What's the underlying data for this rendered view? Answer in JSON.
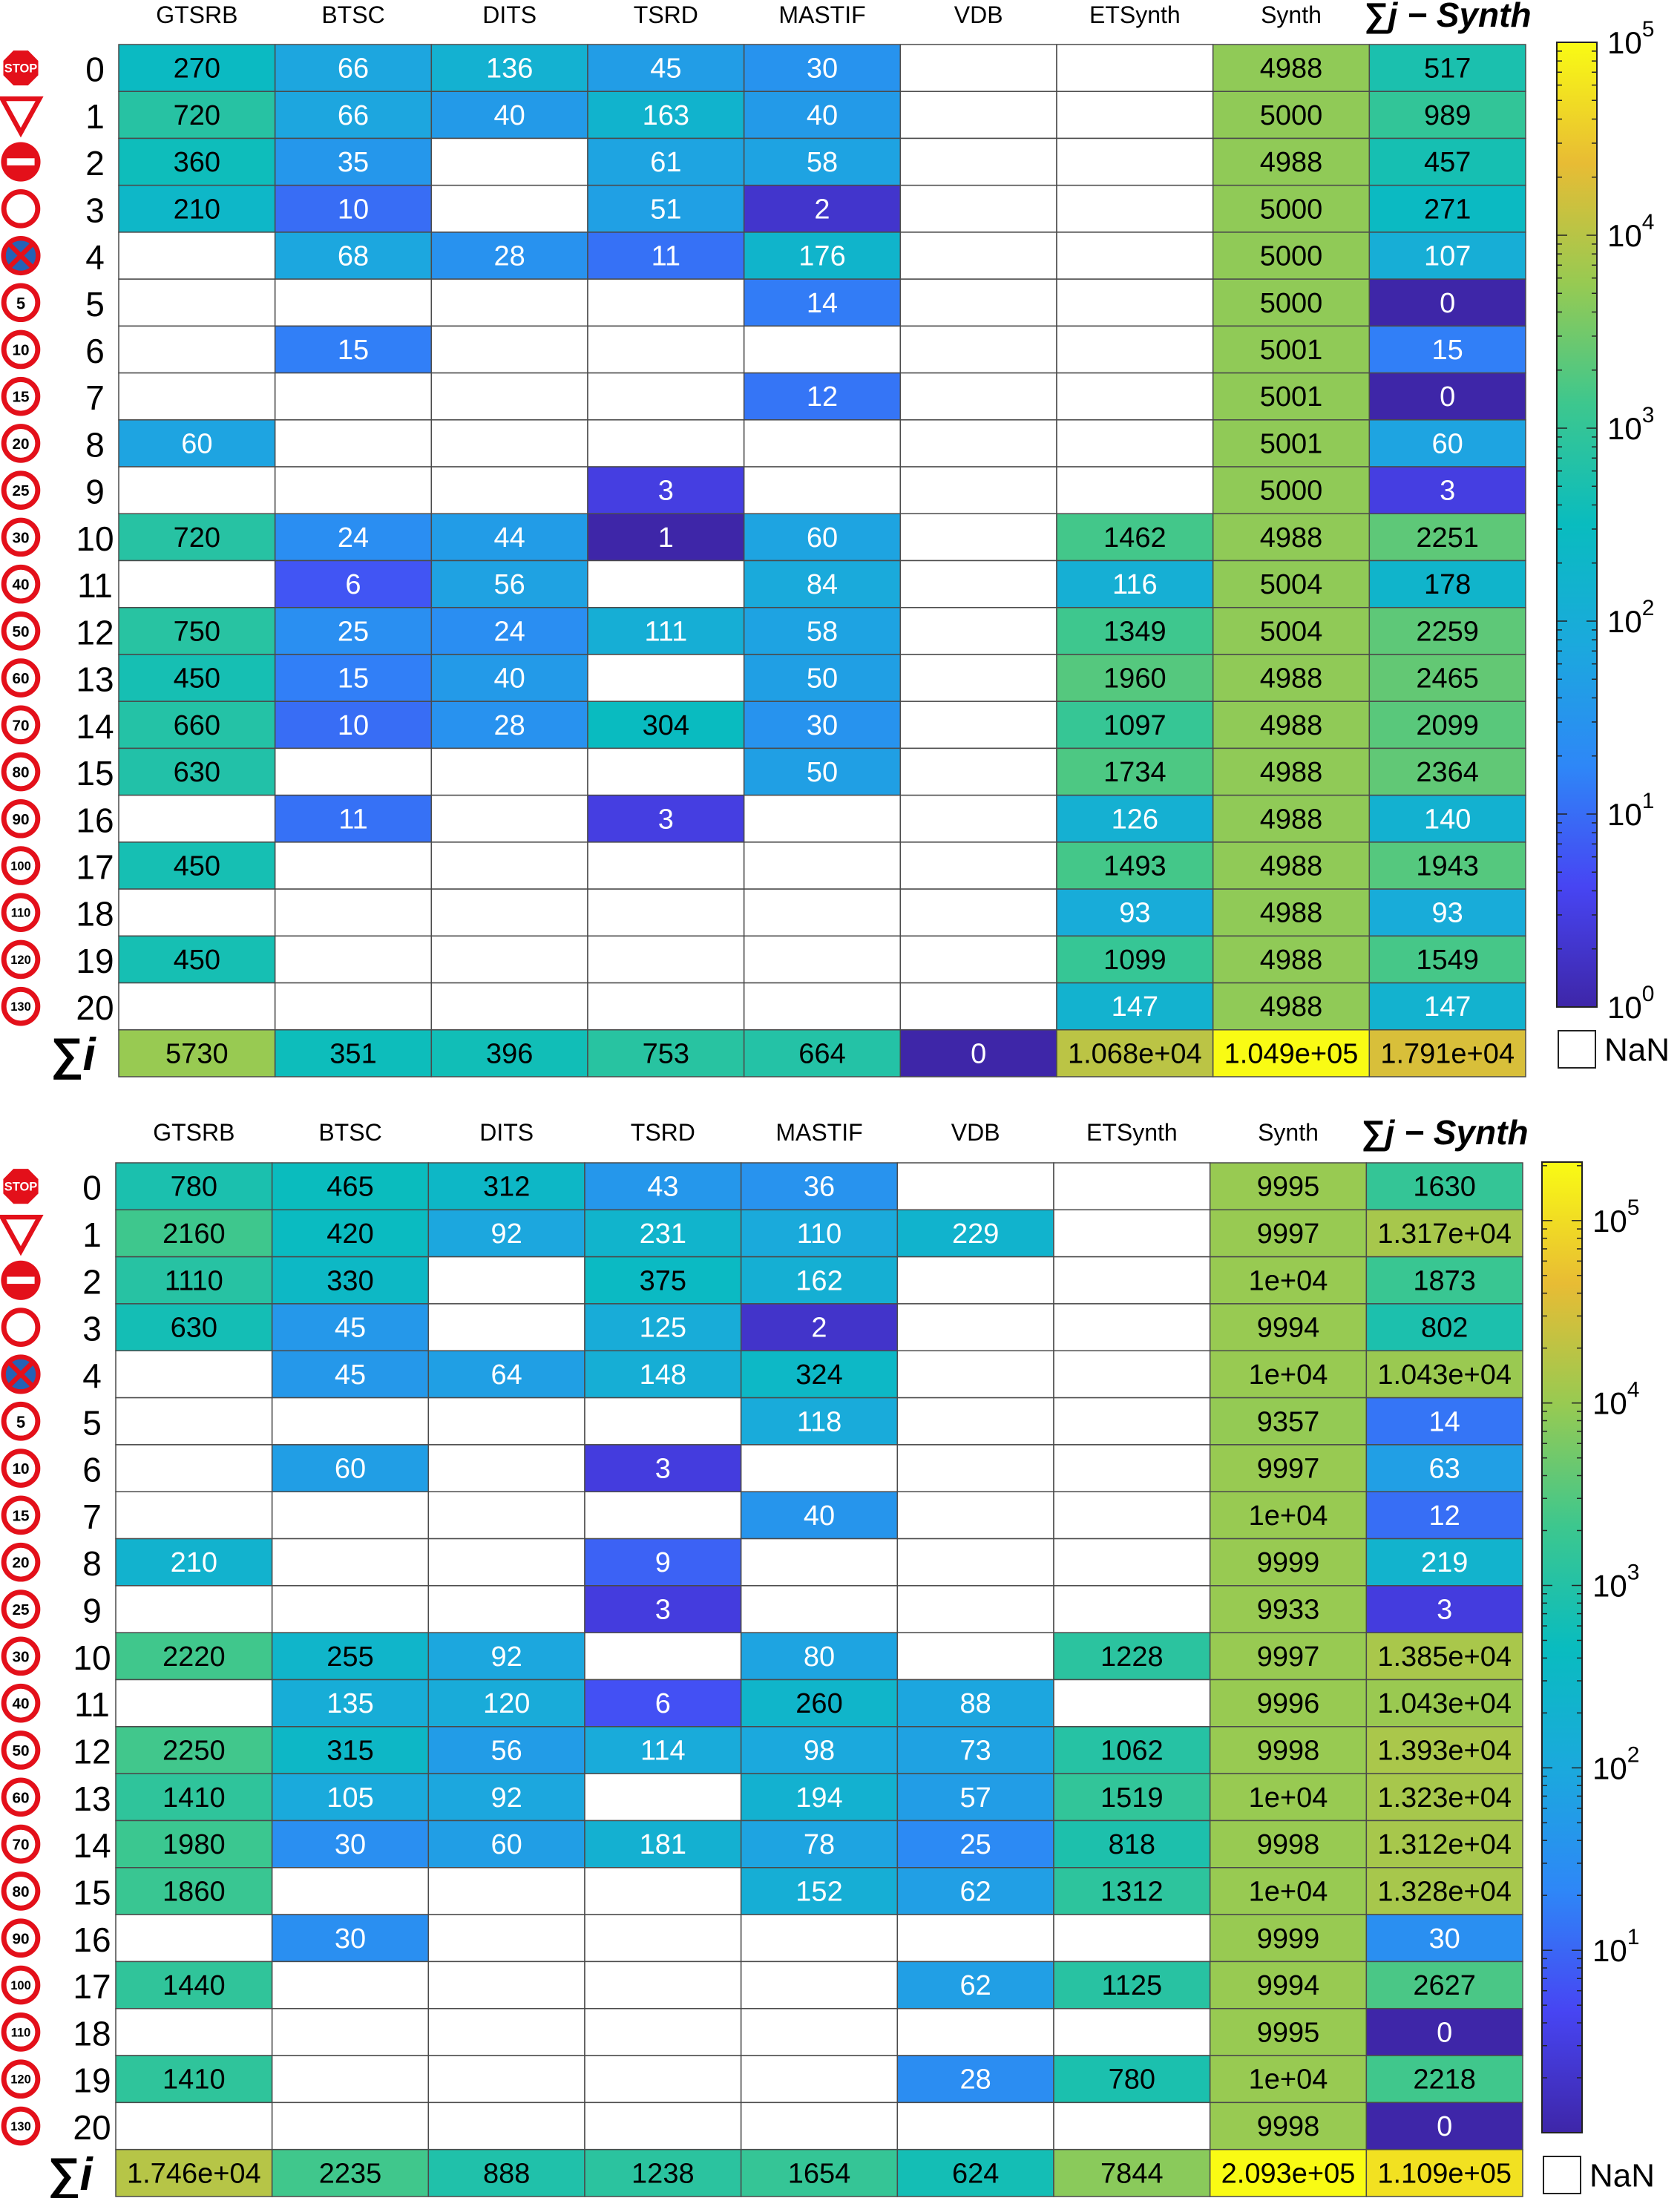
{
  "chart_data": [
    {
      "type": "heatmap",
      "columns": [
        "GTSRB",
        "BTSC",
        "DITS",
        "TSRD",
        "MASTIF",
        "VDB",
        "ETSynth",
        "Synth",
        "∑j − Synth"
      ],
      "rows": [
        "0",
        "1",
        "2",
        "3",
        "4",
        "5",
        "6",
        "7",
        "8",
        "9",
        "10",
        "11",
        "12",
        "13",
        "14",
        "15",
        "16",
        "17",
        "18",
        "19",
        "20",
        "∑i"
      ],
      "row_icons": [
        "STOP",
        "yield",
        "no-entry",
        "circle",
        "no-stopping",
        "5",
        "10",
        "15",
        "20",
        "25",
        "30",
        "40",
        "50",
        "60",
        "70",
        "80",
        "90",
        "100",
        "110",
        "120",
        "130"
      ],
      "color_scale": "log",
      "clim": [
        1,
        100000
      ],
      "colorbar_ticks": [
        "10^0",
        "10^1",
        "10^2",
        "10^3",
        "10^4",
        "10^5"
      ],
      "nan_label": "NaN",
      "values": [
        [
          270,
          66,
          136,
          45,
          30,
          null,
          null,
          4988,
          517
        ],
        [
          720,
          66,
          40,
          163,
          40,
          null,
          null,
          5000,
          989
        ],
        [
          360,
          35,
          null,
          61,
          58,
          null,
          null,
          4988,
          457
        ],
        [
          210,
          10,
          null,
          51,
          2,
          null,
          null,
          5000,
          271
        ],
        [
          null,
          68,
          28,
          11,
          176,
          null,
          null,
          5000,
          107
        ],
        [
          null,
          null,
          null,
          null,
          14,
          null,
          null,
          5000,
          0
        ],
        [
          null,
          15,
          null,
          null,
          null,
          null,
          null,
          5001,
          15
        ],
        [
          null,
          null,
          null,
          null,
          12,
          null,
          null,
          5001,
          0
        ],
        [
          60,
          null,
          null,
          null,
          null,
          null,
          null,
          5001,
          60
        ],
        [
          null,
          null,
          null,
          3,
          null,
          null,
          null,
          5000,
          3
        ],
        [
          720,
          24,
          44,
          1,
          60,
          null,
          1462,
          4988,
          2251
        ],
        [
          null,
          6,
          56,
          null,
          84,
          null,
          116,
          5004,
          178
        ],
        [
          750,
          25,
          24,
          111,
          58,
          null,
          1349,
          5004,
          2259
        ],
        [
          450,
          15,
          40,
          null,
          50,
          null,
          1960,
          4988,
          2465
        ],
        [
          660,
          10,
          28,
          304,
          30,
          null,
          1097,
          4988,
          2099
        ],
        [
          630,
          null,
          null,
          null,
          50,
          null,
          1734,
          4988,
          2364
        ],
        [
          null,
          11,
          null,
          3,
          null,
          null,
          126,
          4988,
          140
        ],
        [
          450,
          null,
          null,
          null,
          null,
          null,
          1493,
          4988,
          1943
        ],
        [
          null,
          null,
          null,
          null,
          null,
          null,
          93,
          4988,
          93
        ],
        [
          450,
          null,
          null,
          null,
          null,
          null,
          1099,
          4988,
          1549
        ],
        [
          null,
          null,
          null,
          null,
          null,
          null,
          147,
          4988,
          147
        ],
        [
          5730,
          351,
          396,
          753,
          664,
          0,
          10680,
          104900,
          17910
        ]
      ],
      "labels": [
        [
          "270",
          "66",
          "136",
          "45",
          "30",
          "",
          "",
          "4988",
          "517"
        ],
        [
          "720",
          "66",
          "40",
          "163",
          "40",
          "",
          "",
          "5000",
          "989"
        ],
        [
          "360",
          "35",
          "",
          "61",
          "58",
          "",
          "",
          "4988",
          "457"
        ],
        [
          "210",
          "10",
          "",
          "51",
          "2",
          "",
          "",
          "5000",
          "271"
        ],
        [
          "",
          "68",
          "28",
          "11",
          "176",
          "",
          "",
          "5000",
          "107"
        ],
        [
          "",
          "",
          "",
          "",
          "14",
          "",
          "",
          "5000",
          "0"
        ],
        [
          "",
          "15",
          "",
          "",
          "",
          "",
          "",
          "5001",
          "15"
        ],
        [
          "",
          "",
          "",
          "",
          "12",
          "",
          "",
          "5001",
          "0"
        ],
        [
          "60",
          "",
          "",
          "",
          "",
          "",
          "",
          "5001",
          "60"
        ],
        [
          "",
          "",
          "",
          "3",
          "",
          "",
          "",
          "5000",
          "3"
        ],
        [
          "720",
          "24",
          "44",
          "1",
          "60",
          "",
          "1462",
          "4988",
          "2251"
        ],
        [
          "",
          "6",
          "56",
          "",
          "84",
          "",
          "116",
          "5004",
          "178"
        ],
        [
          "750",
          "25",
          "24",
          "111",
          "58",
          "",
          "1349",
          "5004",
          "2259"
        ],
        [
          "450",
          "15",
          "40",
          "",
          "50",
          "",
          "1960",
          "4988",
          "2465"
        ],
        [
          "660",
          "10",
          "28",
          "304",
          "30",
          "",
          "1097",
          "4988",
          "2099"
        ],
        [
          "630",
          "",
          "",
          "",
          "50",
          "",
          "1734",
          "4988",
          "2364"
        ],
        [
          "",
          "11",
          "",
          "3",
          "",
          "",
          "126",
          "4988",
          "140"
        ],
        [
          "450",
          "",
          "",
          "",
          "",
          "",
          "1493",
          "4988",
          "1943"
        ],
        [
          "",
          "",
          "",
          "",
          "",
          "",
          "93",
          "4988",
          "93"
        ],
        [
          "450",
          "",
          "",
          "",
          "",
          "",
          "1099",
          "4988",
          "1549"
        ],
        [
          "",
          "",
          "",
          "",
          "",
          "",
          "147",
          "4988",
          "147"
        ],
        [
          "5730",
          "351",
          "396",
          "753",
          "664",
          "0",
          "1.068e+04",
          "1.049e+05",
          "1.791e+04"
        ]
      ]
    },
    {
      "type": "heatmap",
      "columns": [
        "GTSRB",
        "BTSC",
        "DITS",
        "TSRD",
        "MASTIF",
        "VDB",
        "ETSynth",
        "Synth",
        "∑j − Synth"
      ],
      "rows": [
        "0",
        "1",
        "2",
        "3",
        "4",
        "5",
        "6",
        "7",
        "8",
        "9",
        "10",
        "11",
        "12",
        "13",
        "14",
        "15",
        "16",
        "17",
        "18",
        "19",
        "20",
        "∑i"
      ],
      "row_icons": [
        "STOP",
        "yield",
        "no-entry",
        "circle",
        "no-stopping",
        "5",
        "10",
        "15",
        "20",
        "25",
        "30",
        "40",
        "50",
        "60",
        "70",
        "80",
        "90",
        "100",
        "110",
        "120",
        "130"
      ],
      "color_scale": "log",
      "clim": [
        1,
        209300
      ],
      "colorbar_ticks": [
        "10^1",
        "10^2",
        "10^3",
        "10^4",
        "10^5"
      ],
      "nan_label": "NaN",
      "values": [
        [
          780,
          465,
          312,
          43,
          36,
          null,
          null,
          9995,
          1630
        ],
        [
          2160,
          420,
          92,
          231,
          110,
          229,
          null,
          9997,
          13170
        ],
        [
          1110,
          330,
          null,
          375,
          162,
          null,
          null,
          10000,
          1873
        ],
        [
          630,
          45,
          null,
          125,
          2,
          null,
          null,
          9994,
          802
        ],
        [
          null,
          45,
          64,
          148,
          324,
          null,
          null,
          10000,
          10430
        ],
        [
          null,
          null,
          null,
          null,
          118,
          null,
          null,
          9357,
          14
        ],
        [
          null,
          60,
          null,
          3,
          null,
          null,
          null,
          9997,
          63
        ],
        [
          null,
          null,
          null,
          null,
          40,
          null,
          null,
          10000,
          12
        ],
        [
          210,
          null,
          null,
          9,
          null,
          null,
          null,
          9999,
          219
        ],
        [
          null,
          null,
          null,
          3,
          null,
          null,
          null,
          9933,
          3
        ],
        [
          2220,
          255,
          92,
          null,
          80,
          null,
          1228,
          9997,
          13850
        ],
        [
          null,
          135,
          120,
          6,
          260,
          88,
          null,
          9996,
          10430
        ],
        [
          2250,
          315,
          56,
          114,
          98,
          73,
          1062,
          9998,
          13930
        ],
        [
          1410,
          105,
          92,
          null,
          194,
          57,
          1519,
          10000,
          13230
        ],
        [
          1980,
          30,
          60,
          181,
          78,
          25,
          818,
          9998,
          13120
        ],
        [
          1860,
          null,
          null,
          null,
          152,
          62,
          1312,
          10000,
          13280
        ],
        [
          null,
          30,
          null,
          null,
          null,
          null,
          null,
          9999,
          30
        ],
        [
          1440,
          null,
          null,
          null,
          null,
          62,
          1125,
          9994,
          2627
        ],
        [
          null,
          null,
          null,
          null,
          null,
          null,
          null,
          9995,
          0
        ],
        [
          1410,
          null,
          null,
          null,
          null,
          28,
          780,
          10000,
          2218
        ],
        [
          null,
          null,
          null,
          null,
          null,
          null,
          null,
          9998,
          0
        ],
        [
          17460,
          2235,
          888,
          1238,
          1654,
          624,
          7844,
          209300,
          110900
        ]
      ],
      "labels": [
        [
          "780",
          "465",
          "312",
          "43",
          "36",
          "",
          "",
          "9995",
          "1630"
        ],
        [
          "2160",
          "420",
          "92",
          "231",
          "110",
          "229",
          "",
          "9997",
          "1.317e+04"
        ],
        [
          "1110",
          "330",
          "",
          "375",
          "162",
          "",
          "",
          "1e+04",
          "1873"
        ],
        [
          "630",
          "45",
          "",
          "125",
          "2",
          "",
          "",
          "9994",
          "802"
        ],
        [
          "",
          "45",
          "64",
          "148",
          "324",
          "",
          "",
          "1e+04",
          "1.043e+04"
        ],
        [
          "",
          "",
          "",
          "",
          "118",
          "",
          "",
          "9357",
          "14"
        ],
        [
          "",
          "60",
          "",
          "3",
          "",
          "",
          "",
          "9997",
          "63"
        ],
        [
          "",
          "",
          "",
          "",
          "40",
          "",
          "",
          "1e+04",
          "12"
        ],
        [
          "210",
          "",
          "",
          "9",
          "",
          "",
          "",
          "9999",
          "219"
        ],
        [
          "",
          "",
          "",
          "3",
          "",
          "",
          "",
          "9933",
          "3"
        ],
        [
          "2220",
          "255",
          "92",
          "",
          "80",
          "",
          "1228",
          "9997",
          "1.385e+04"
        ],
        [
          "",
          "135",
          "120",
          "6",
          "260",
          "88",
          "",
          "9996",
          "1.043e+04"
        ],
        [
          "2250",
          "315",
          "56",
          "114",
          "98",
          "73",
          "1062",
          "9998",
          "1.393e+04"
        ],
        [
          "1410",
          "105",
          "92",
          "",
          "194",
          "57",
          "1519",
          "1e+04",
          "1.323e+04"
        ],
        [
          "1980",
          "30",
          "60",
          "181",
          "78",
          "25",
          "818",
          "9998",
          "1.312e+04"
        ],
        [
          "1860",
          "",
          "",
          "",
          "152",
          "62",
          "1312",
          "1e+04",
          "1.328e+04"
        ],
        [
          "",
          "30",
          "",
          "",
          "",
          "",
          "",
          "9999",
          "30"
        ],
        [
          "1440",
          "",
          "",
          "",
          "",
          "62",
          "1125",
          "9994",
          "2627"
        ],
        [
          "",
          "",
          "",
          "",
          "",
          "",
          "",
          "9995",
          "0"
        ],
        [
          "1410",
          "",
          "",
          "",
          "",
          "28",
          "780",
          "1e+04",
          "2218"
        ],
        [
          "",
          "",
          "",
          "",
          "",
          "",
          "",
          "9998",
          "0"
        ],
        [
          "1.746e+04",
          "2235",
          "888",
          "1238",
          "1654",
          "624",
          "7844",
          "2.093e+05",
          "1.109e+05"
        ]
      ]
    }
  ]
}
